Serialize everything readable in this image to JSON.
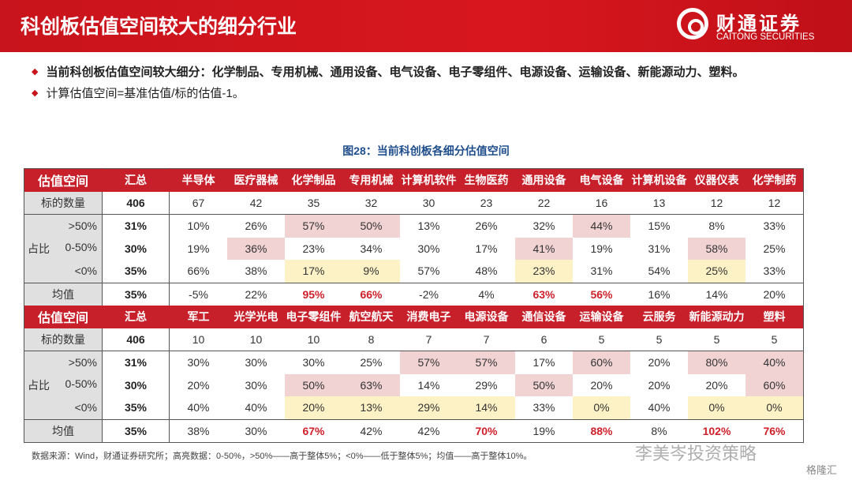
{
  "header": {
    "title": "科创板估值空间较大的细分行业",
    "logo_cn": "财通证券",
    "logo_en": "CAITONG SECURITIES"
  },
  "bullets": [
    "当前科创板估值空间较大细分：化学制品、专用机械、通用设备、电气设备、电子零组件、电源设备、运输设备、新能源动力、塑料。",
    "计算估值空间=基准估值/标的估值-1。"
  ],
  "figure_caption": "图28：当前科创板各细分估值空间",
  "colors": {
    "accent": "#c8202a",
    "highlight_pink": "#f2d3d4",
    "highlight_yellow": "#fdf2c6"
  },
  "tables": [
    {
      "corner": "估值空间",
      "total_label": "汇总",
      "industries": [
        "半导体",
        "医疗器械",
        "化学制品",
        "专用机械",
        "计算机软件",
        "生物医药",
        "通用设备",
        "电气设备",
        "计算机设备",
        "仪器仪表",
        "化学制药"
      ],
      "rows": [
        {
          "label": "标的数量",
          "total": "406",
          "values": [
            "67",
            "42",
            "35",
            "32",
            "30",
            "23",
            "22",
            "16",
            "13",
            "12",
            "12"
          ],
          "hl": "..........."
        },
        {
          "label": ">50%",
          "total": "31%",
          "values": [
            "10%",
            "26%",
            "57%",
            "50%",
            "13%",
            "26%",
            "32%",
            "44%",
            "15%",
            "8%",
            "33%"
          ],
          "hl": "..pp...p..."
        },
        {
          "label": "0-50%",
          "total": "30%",
          "values": [
            "19%",
            "36%",
            "23%",
            "34%",
            "30%",
            "17%",
            "41%",
            "19%",
            "31%",
            "58%",
            "25%"
          ],
          "hl": ".p....p..p."
        },
        {
          "label": "<0%",
          "total": "35%",
          "values": [
            "66%",
            "38%",
            "17%",
            "9%",
            "57%",
            "48%",
            "23%",
            "31%",
            "54%",
            "25%",
            "33%"
          ],
          "hl": "..yy..y..y."
        },
        {
          "label": "均值",
          "total": "35%",
          "values": [
            "-5%",
            "22%",
            "95%",
            "66%",
            "-2%",
            "4%",
            "63%",
            "56%",
            "16%",
            "14%",
            "20%"
          ],
          "hl": "..rr..rr..."
        }
      ]
    },
    {
      "corner": "估值空间",
      "total_label": "汇总",
      "industries": [
        "军工",
        "光学光电",
        "电子零组件",
        "航空航天",
        "消费电子",
        "电源设备",
        "通信设备",
        "运输设备",
        "云服务",
        "新能源动力",
        "塑料"
      ],
      "rows": [
        {
          "label": "标的数量",
          "total": "406",
          "values": [
            "10",
            "10",
            "10",
            "8",
            "7",
            "7",
            "6",
            "5",
            "5",
            "5",
            "5"
          ],
          "hl": "..........."
        },
        {
          "label": ">50%",
          "total": "31%",
          "values": [
            "30%",
            "30%",
            "30%",
            "25%",
            "57%",
            "57%",
            "17%",
            "60%",
            "20%",
            "80%",
            "40%"
          ],
          "hl": "....pp.p.pp"
        },
        {
          "label": "0-50%",
          "total": "30%",
          "values": [
            "20%",
            "30%",
            "50%",
            "63%",
            "14%",
            "29%",
            "50%",
            "20%",
            "20%",
            "20%",
            "60%"
          ],
          "hl": "..pp..p...p"
        },
        {
          "label": "<0%",
          "total": "35%",
          "values": [
            "40%",
            "40%",
            "20%",
            "13%",
            "29%",
            "14%",
            "33%",
            "0%",
            "40%",
            "0%",
            "0%"
          ],
          "hl": "..yyyy.y.yy"
        },
        {
          "label": "均值",
          "total": "35%",
          "values": [
            "38%",
            "30%",
            "67%",
            "42%",
            "42%",
            "70%",
            "19%",
            "88%",
            "8%",
            "102%",
            "76%"
          ],
          "hl": "..r..r.r.rr"
        }
      ]
    }
  ],
  "ratio_group_label": "占比",
  "source": "数据来源：Wind，财通证券研究所；高亮数据：0-50%，>50%——高于整体5%；<0%——低于整体5%；均值——高于整体10%。",
  "watermark": "李美岑投资策略",
  "watermark2": "格隆汇"
}
